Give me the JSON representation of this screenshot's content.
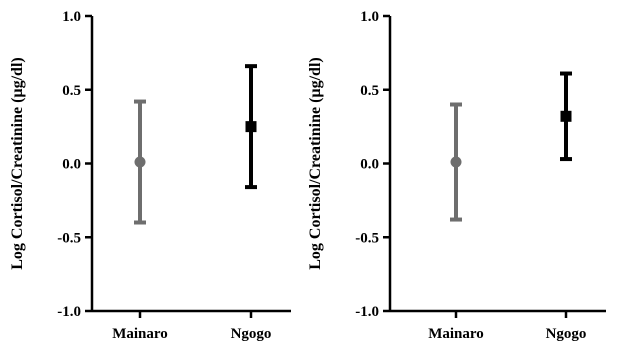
{
  "chart_data": [
    {
      "type": "scatter",
      "title": "",
      "xlabel": "",
      "ylabel": "Log Cortisol/Creatinine (µg/dl)",
      "ylim": [
        -1.0,
        1.0
      ],
      "yticks": [
        "1.0",
        "0.5",
        "0.0",
        "-0.5",
        "-1.0"
      ],
      "categories": [
        "Mainaro",
        "Ngogo"
      ],
      "series": [
        {
          "value": 0.01,
          "upper": 0.42,
          "lower": -0.4,
          "marker": "circle",
          "color": "#6e6e6e"
        },
        {
          "value": 0.25,
          "upper": 0.66,
          "lower": -0.16,
          "marker": "square",
          "color": "#000000"
        }
      ],
      "grid": false
    },
    {
      "type": "scatter",
      "title": "",
      "xlabel": "",
      "ylabel": "Log Cortisol/Creatinine (µg/dl)",
      "ylim": [
        -1.0,
        1.0
      ],
      "yticks": [
        "1.0",
        "0.5",
        "0.0",
        "-0.5",
        "-1.0"
      ],
      "categories": [
        "Mainaro",
        "Ngogo"
      ],
      "series": [
        {
          "value": 0.01,
          "upper": 0.4,
          "lower": -0.38,
          "marker": "circle",
          "color": "#6e6e6e"
        },
        {
          "value": 0.32,
          "upper": 0.61,
          "lower": 0.03,
          "marker": "square",
          "color": "#000000"
        }
      ],
      "grid": false
    }
  ]
}
